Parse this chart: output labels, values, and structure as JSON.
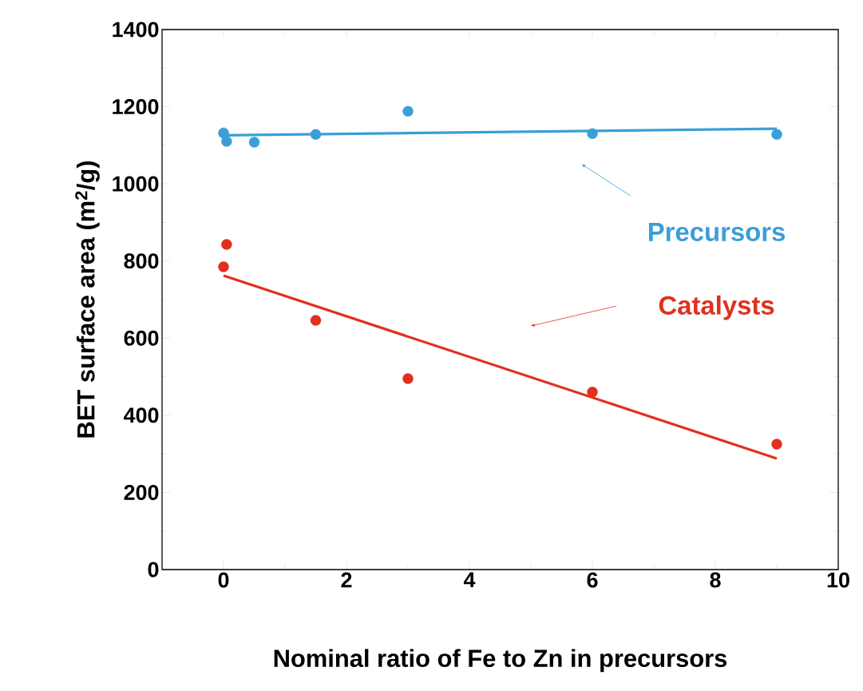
{
  "chart_data": {
    "type": "scatter",
    "xlabel": "Nominal ratio of Fe to Zn in precursors",
    "ylabel": "BET surface area (m$^{2}$/g)",
    "xlim": [
      -1,
      10
    ],
    "ylim": [
      0,
      1400
    ],
    "xticks": [
      0,
      2,
      4,
      6,
      8,
      10
    ],
    "yticks": [
      0,
      200,
      400,
      600,
      800,
      1000,
      1200,
      1400
    ],
    "grid": false,
    "series": [
      {
        "name": "Precursors",
        "color": "#3a9fd6",
        "marker": "circle",
        "x": [
          0,
          0.05,
          0.5,
          1.5,
          3,
          6,
          9
        ],
        "values": [
          1132,
          1110,
          1108,
          1128,
          1188,
          1130,
          1128
        ]
      },
      {
        "name": "Catalysts",
        "color": "#e0301e",
        "marker": "circle",
        "x": [
          0,
          0.05,
          1.5,
          3,
          6,
          9
        ],
        "values": [
          785,
          843,
          646,
          495,
          460,
          325
        ]
      },
      {
        "color": "#3a9fd6",
        "type": "line",
        "marker": "none",
        "x": [
          0,
          9
        ],
        "values": [
          1126,
          1143
        ]
      },
      {
        "color": "#e0301e",
        "type": "line",
        "marker": "none",
        "x": [
          0,
          9
        ],
        "values": [
          762,
          288
        ]
      }
    ]
  }
}
